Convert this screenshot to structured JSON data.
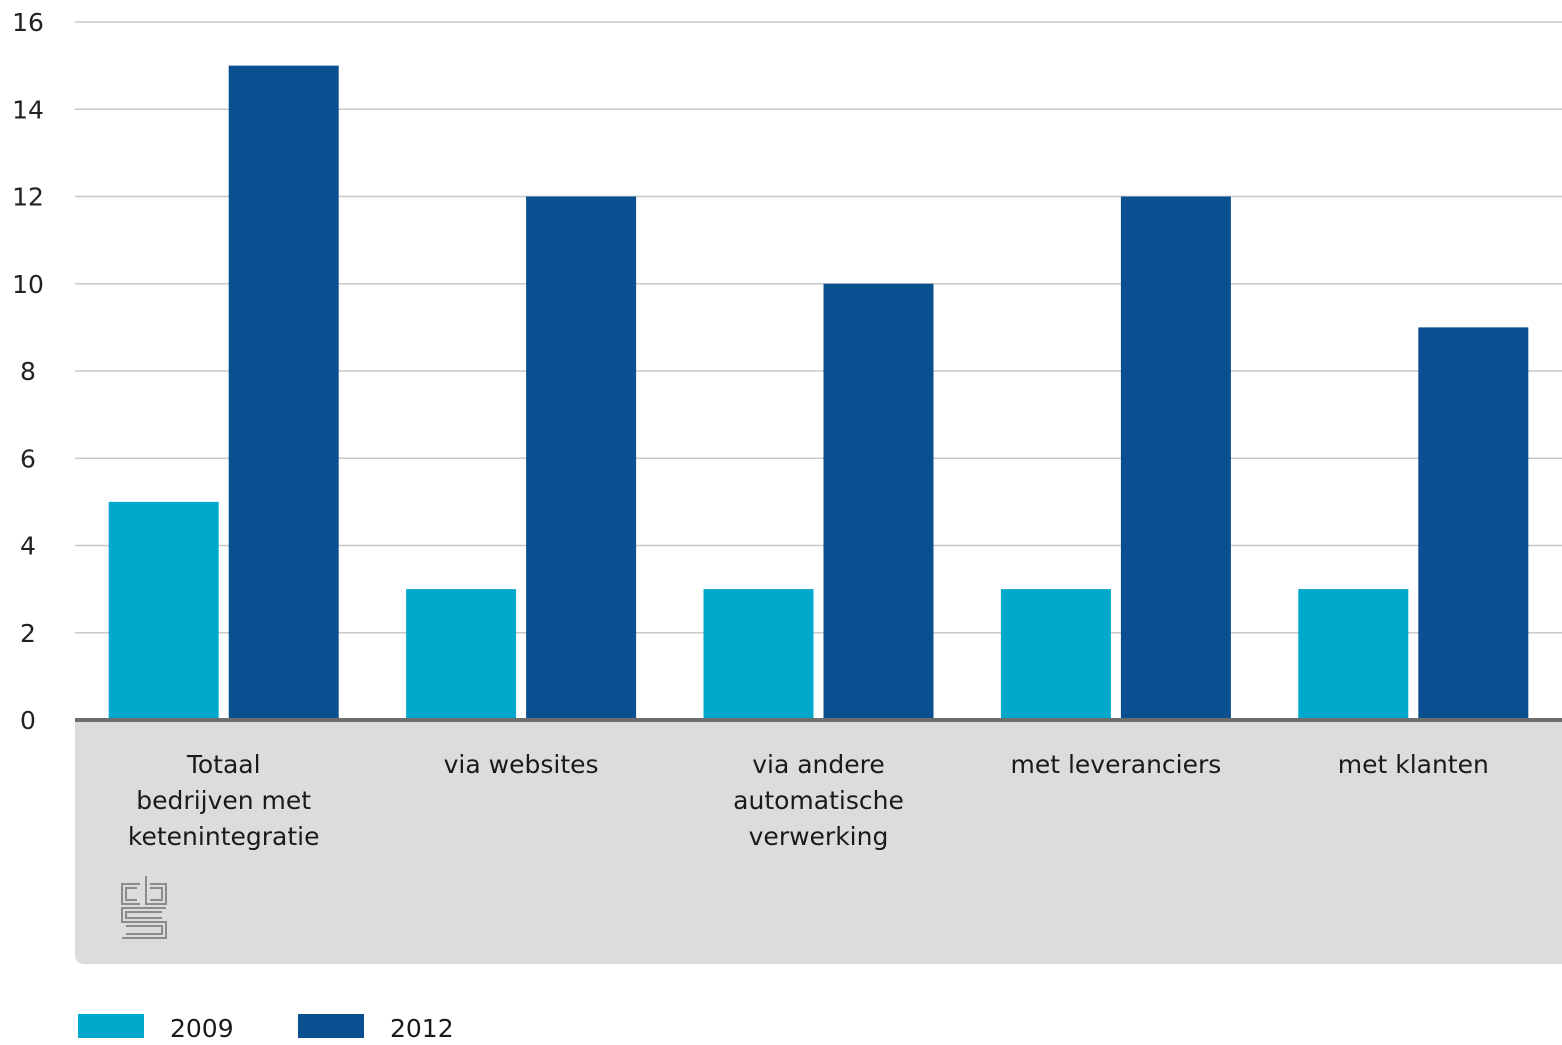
{
  "chart_data": {
    "type": "bar",
    "categories": [
      [
        "Totaal",
        "bedrijven met",
        "ketenintegratie"
      ],
      [
        "via websites"
      ],
      [
        "via andere",
        "automatische",
        "verwerking"
      ],
      [
        "met leveranciers"
      ],
      [
        "met klanten"
      ]
    ],
    "series": [
      {
        "name": "2009",
        "color": "#00a9cc",
        "values": [
          5,
          3,
          3,
          3,
          3
        ]
      },
      {
        "name": "2012",
        "color": "#0a4f8f",
        "values": [
          15,
          12,
          10,
          12,
          9
        ]
      }
    ],
    "title": "",
    "xlabel": "",
    "ylabel": "",
    "ylim": [
      0,
      16
    ],
    "yticks": [
      0,
      2,
      4,
      6,
      8,
      10,
      12,
      14,
      16
    ],
    "grid": true,
    "legend": "bottom-left",
    "logo": "cbs-logo-icon"
  }
}
